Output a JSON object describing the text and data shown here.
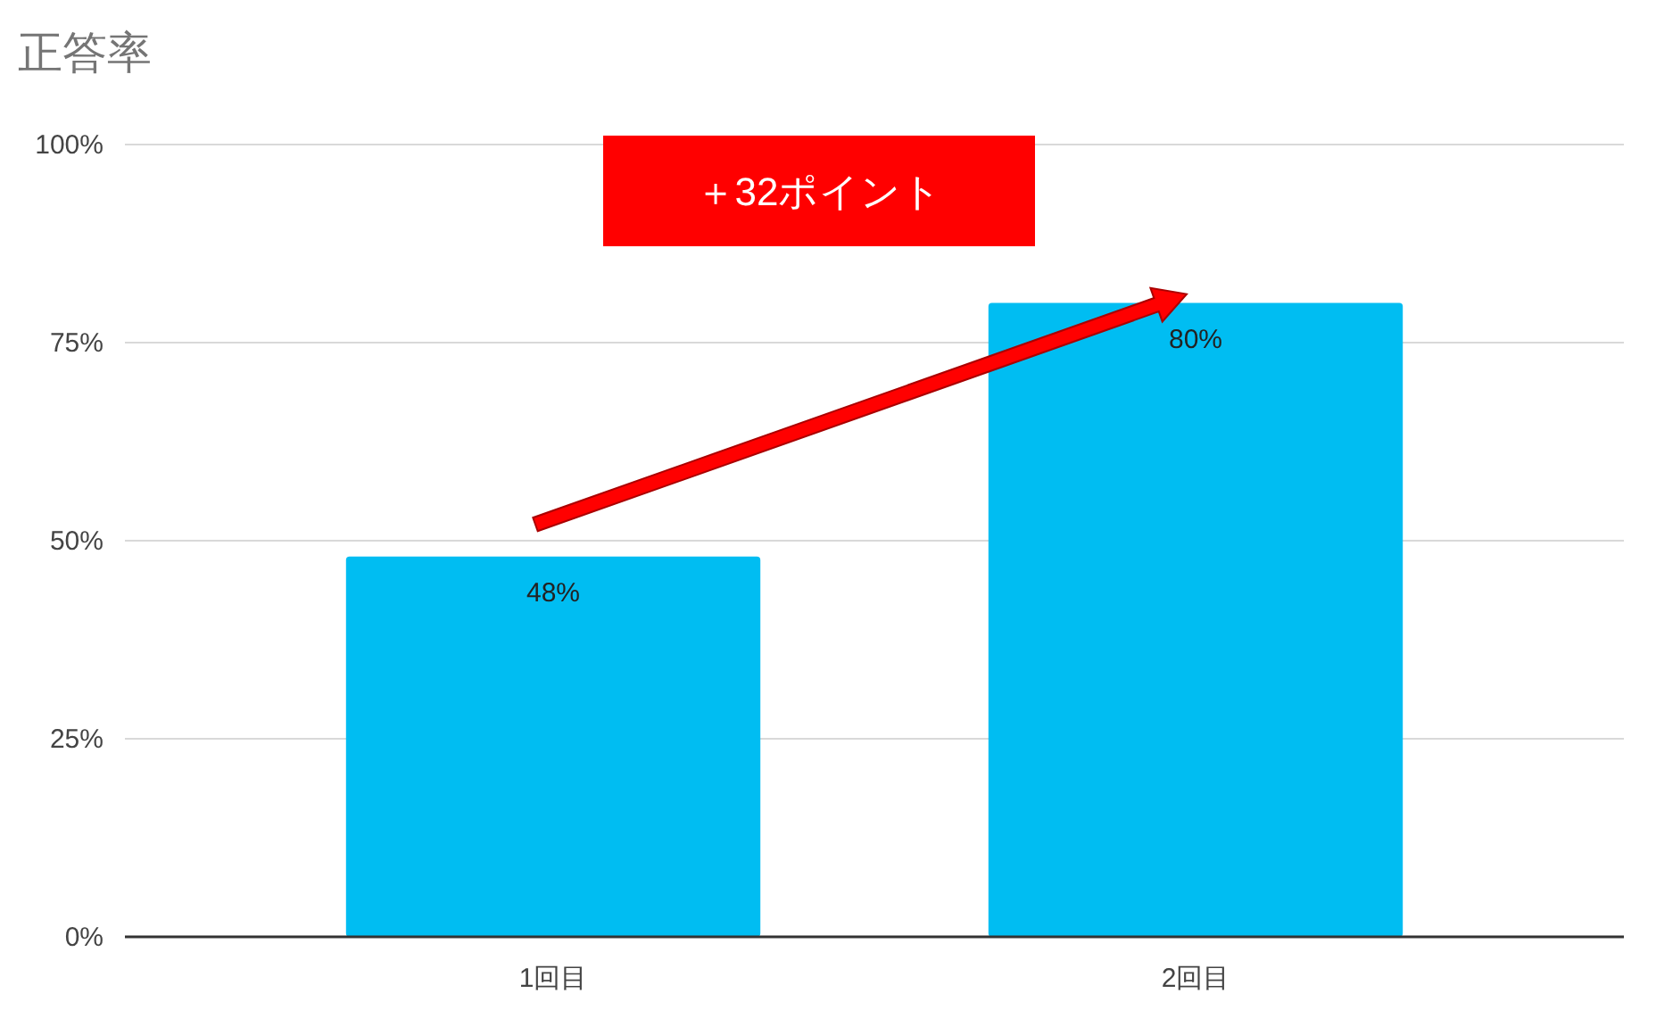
{
  "chart_data": {
    "type": "bar",
    "title": "正答率",
    "categories": [
      "1回目",
      "2回目"
    ],
    "values": [
      48,
      80
    ],
    "value_labels": [
      "48%",
      "80%"
    ],
    "color": "#00bdf2",
    "ylim": [
      0,
      100
    ],
    "yticks": [
      {
        "value": 0,
        "label": "0%"
      },
      {
        "value": 25,
        "label": "25%"
      },
      {
        "value": 50,
        "label": "50%"
      },
      {
        "value": 75,
        "label": "75%"
      },
      {
        "value": 100,
        "label": "100%"
      }
    ],
    "grid": "y",
    "annotations": [
      "＋32ポイント"
    ]
  }
}
